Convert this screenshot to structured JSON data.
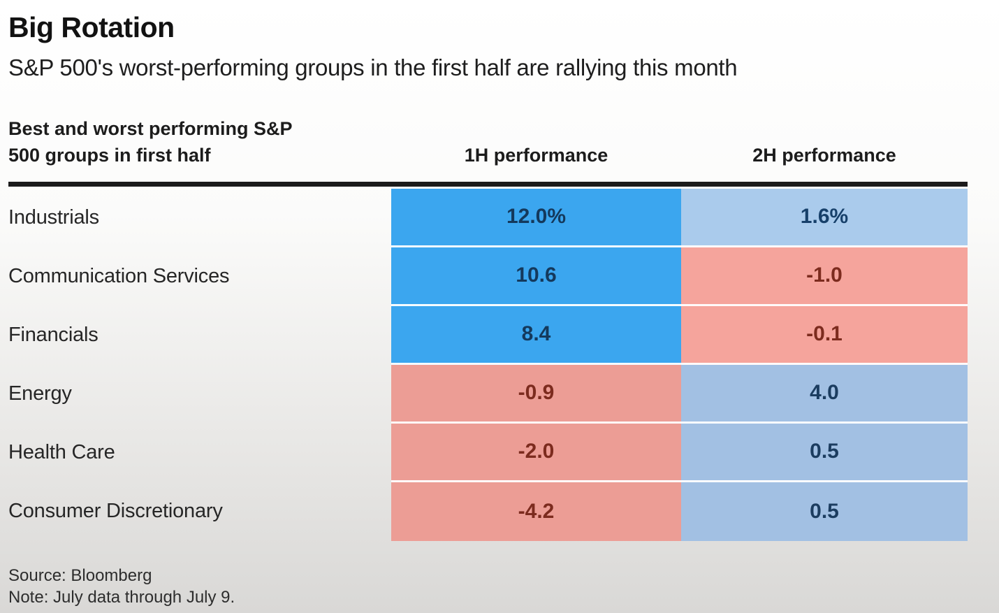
{
  "title": "Big Rotation",
  "subtitle": "S&P 500's worst-performing groups in the first half are rallying this month",
  "table": {
    "row_header_line1": "Best and worst performing S&P",
    "row_header_line2": "500 groups in first half",
    "col1_header": "1H performance",
    "col2_header": "2H performance",
    "rows": [
      {
        "label": "Industrials",
        "h1": "12.0%",
        "h2": "1.6%",
        "h1_bg": "#3ba6ef",
        "h1_fg": "#14395c",
        "h2_bg": "#aacbec",
        "h2_fg": "#17406a"
      },
      {
        "label": "Communication Services",
        "h1": "10.6",
        "h2": "-1.0",
        "h1_bg": "#3ba6ef",
        "h1_fg": "#14395c",
        "h2_bg": "#f5a49c",
        "h2_fg": "#7c2b1e"
      },
      {
        "label": "Financials",
        "h1": "8.4",
        "h2": "-0.1",
        "h1_bg": "#3ba6ef",
        "h1_fg": "#14395c",
        "h2_bg": "#f5a49c",
        "h2_fg": "#7c2b1e"
      },
      {
        "label": "Energy",
        "h1": "-0.9",
        "h2": "4.0",
        "h1_bg": "#ec9d95",
        "h1_fg": "#7c2b1e",
        "h2_bg": "#a2c0e3",
        "h2_fg": "#1c3d60"
      },
      {
        "label": "Health Care",
        "h1": "-2.0",
        "h2": "0.5",
        "h1_bg": "#ec9d95",
        "h1_fg": "#7c2b1e",
        "h2_bg": "#a2c0e3",
        "h2_fg": "#1c3d60"
      },
      {
        "label": "Consumer Discretionary",
        "h1": "-4.2",
        "h2": "0.5",
        "h1_bg": "#ec9d95",
        "h1_fg": "#7c2b1e",
        "h2_bg": "#a2c0e3",
        "h2_fg": "#1c3d60"
      }
    ]
  },
  "footer": {
    "source": "Source: Bloomberg",
    "note": "Note: July data through July 9."
  },
  "colors": {
    "bright_blue": "#3ba6ef",
    "light_blue_top": "#aacbec",
    "light_blue_bottom": "#a2c0e3",
    "salmon_1h": "#ec9d95",
    "salmon_2h": "#f5a49c",
    "navy_text": "#14395c",
    "maroon_text": "#7c2b1e",
    "rule": "#1b1b1b",
    "background_top": "#ffffff",
    "background_bottom": "#d9d8d6"
  },
  "chart_data": {
    "type": "table",
    "title": "Big Rotation",
    "subtitle": "S&P 500's worst-performing groups in the first half are rallying this month",
    "row_header": "Best and worst performing S&P 500 groups in first half",
    "categories": [
      "Industrials",
      "Communication Services",
      "Financials",
      "Energy",
      "Health Care",
      "Consumer Discretionary"
    ],
    "series": [
      {
        "name": "1H performance",
        "values": [
          12.0,
          10.6,
          8.4,
          -0.9,
          -2.0,
          -4.2
        ]
      },
      {
        "name": "2H performance",
        "values": [
          1.6,
          -1.0,
          -0.1,
          4.0,
          0.5,
          0.5
        ]
      }
    ],
    "units": "%",
    "color_coding": "blue = positive performance, red/salmon = negative performance; saturated blue highlights 1H winners",
    "source": "Source: Bloomberg",
    "note": "Note: July data through July 9."
  }
}
